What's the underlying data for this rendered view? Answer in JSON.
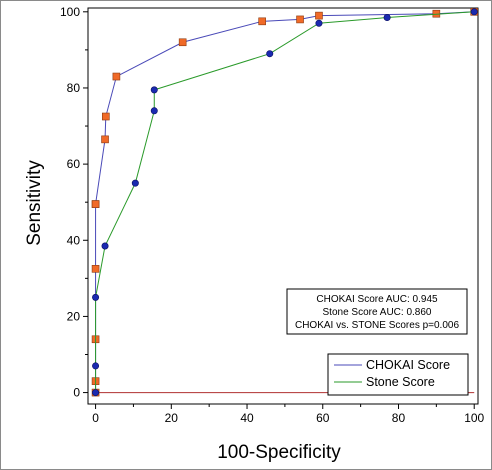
{
  "chart_data": {
    "type": "line",
    "title": "",
    "xlabel": "100-Specificity",
    "ylabel": "Sensitivity",
    "xlim": [
      -2,
      101
    ],
    "ylim": [
      -3,
      101
    ],
    "xticks": [
      "0",
      "20",
      "40",
      "60",
      "80",
      "100"
    ],
    "yticks": [
      "0",
      "20",
      "40",
      "60",
      "80",
      "100"
    ],
    "grid": false,
    "legend_position": "bottom-right",
    "stats_box": [
      "CHOKAI Score AUC: 0.945",
      "Stone Score AUC: 0.860",
      "CHOKAI vs. STONE Scores p=0.006"
    ],
    "series": [
      {
        "name": "CHOKAI Score",
        "line_color": "#4a4ab8",
        "marker": "square",
        "marker_color": "#f06a28",
        "x": [
          0,
          0,
          0,
          0,
          0,
          0,
          2.5,
          2.7,
          5.5,
          23,
          44,
          54,
          59,
          90,
          100
        ],
        "y": [
          0,
          3,
          14,
          32.5,
          49.5,
          49.5,
          66.5,
          72.5,
          83,
          92,
          97.5,
          98,
          99,
          99.5,
          100
        ]
      },
      {
        "name": "Stone Score",
        "line_color": "#2a9a2a",
        "marker": "circle",
        "marker_color": "#1a2ab0",
        "x": [
          0,
          0,
          0,
          2.5,
          10.5,
          15.5,
          15.5,
          46,
          59,
          77,
          100
        ],
        "y": [
          0,
          7,
          25,
          38.5,
          55,
          74,
          79.5,
          89,
          97,
          98.5,
          100
        ]
      }
    ]
  }
}
